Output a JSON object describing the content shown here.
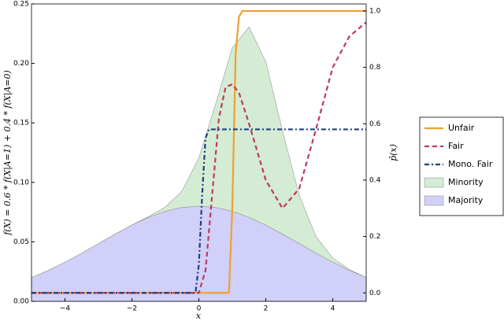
{
  "chart_data": {
    "type": "line",
    "xlabel": "x",
    "ylabel": "f(X) = 0.6 * f(X|A=1) + 0.4 * f(X|A=0)",
    "y2label": "p̂(x)",
    "xlim": [
      -5,
      5
    ],
    "ylim": [
      0,
      0.25
    ],
    "y2lim": [
      -0.03,
      1.025
    ],
    "xticks": [
      {
        "value": -4,
        "label": "−4"
      },
      {
        "value": -2,
        "label": "−2"
      },
      0,
      2,
      4
    ],
    "yticks": [
      {
        "value": 0,
        "label": "0.00"
      },
      {
        "value": 0.05,
        "label": "0.05"
      },
      {
        "value": 0.1,
        "label": "0.10"
      },
      {
        "value": 0.15,
        "label": "0.15"
      },
      {
        "value": 0.2,
        "label": "0.20"
      },
      {
        "value": 0.25,
        "label": "0.25"
      }
    ],
    "y2ticks": [
      {
        "value": 0,
        "label": "0.0"
      },
      {
        "value": 0.2,
        "label": "0.2"
      },
      {
        "value": 0.4,
        "label": "0.4"
      },
      {
        "value": 0.6,
        "label": "0.6"
      },
      {
        "value": 0.8,
        "label": "0.8"
      },
      {
        "value": 1,
        "label": "1.0"
      }
    ],
    "x": [
      -5,
      -4.5,
      -4,
      -3.5,
      -3,
      -2.5,
      -2,
      -1.5,
      -1,
      -0.5,
      0,
      0.5,
      1,
      1.5,
      2,
      2.5,
      3,
      3.5,
      4,
      4.5,
      5
    ],
    "series": [
      {
        "name": "Unfair",
        "kind": "line",
        "color": "#f0a030",
        "axis": "y2",
        "x": [
          -5,
          0.9,
          1.0,
          1.1,
          1.2,
          1.3,
          5
        ],
        "values": [
          0,
          0,
          0.3,
          0.85,
          0.98,
          1,
          1
        ]
      },
      {
        "name": "Fair",
        "kind": "line",
        "color": "#c0395a",
        "dash": "6,4",
        "axis": "y2",
        "x": [
          -5,
          0,
          0.2,
          0.4,
          0.6,
          0.8,
          1.0,
          1.2,
          1.5,
          2.0,
          2.5,
          3.0,
          3.5,
          4.0,
          4.5,
          5.0
        ],
        "values": [
          0,
          0,
          0.08,
          0.35,
          0.62,
          0.73,
          0.74,
          0.71,
          0.6,
          0.4,
          0.3,
          0.37,
          0.58,
          0.8,
          0.91,
          0.96
        ]
      },
      {
        "name": "Mono. Fair",
        "kind": "line",
        "color": "#1f3f7f",
        "dash": "6,3,2,3",
        "axis": "y2",
        "x": [
          -5,
          -0.1,
          0,
          0.1,
          0.2,
          0.3,
          5
        ],
        "values": [
          0,
          0,
          0.1,
          0.35,
          0.55,
          0.58,
          0.58
        ]
      },
      {
        "name": "Minority",
        "kind": "area",
        "color": "#d4ecd4",
        "stack_on": "Majority",
        "values": [
          0,
          0,
          0,
          0,
          0,
          0,
          0.0001,
          0.0007,
          0.0035,
          0.014,
          0.0406,
          0.0869,
          0.1374,
          0.16,
          0.1374,
          0.0869,
          0.0406,
          0.014,
          0.0035,
          0.0007,
          0.0001
        ]
      },
      {
        "name": "Majority",
        "kind": "area",
        "color": "#d0d0f8",
        "values": [
          0.02,
          0.026,
          0.0329,
          0.0405,
          0.0485,
          0.0565,
          0.0641,
          0.0706,
          0.0757,
          0.0789,
          0.08,
          0.0789,
          0.0757,
          0.0706,
          0.0641,
          0.0565,
          0.0485,
          0.0405,
          0.0329,
          0.026,
          0.02
        ]
      }
    ]
  }
}
